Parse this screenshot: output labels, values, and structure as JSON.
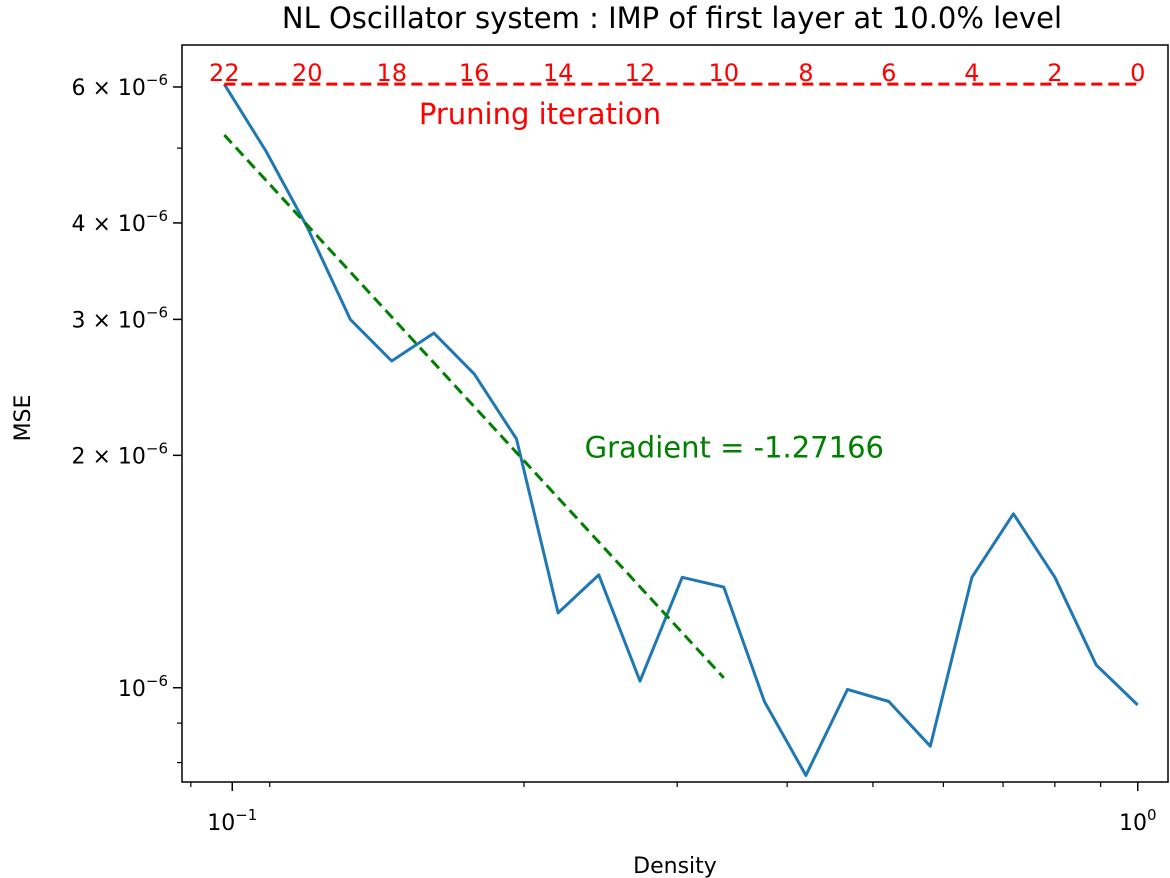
{
  "chart_data": {
    "type": "line",
    "title": "NL Oscillator system : IMP of first layer at 10.0% level",
    "xlabel": "Density",
    "ylabel": "MSE",
    "xscale": "log",
    "yscale": "log",
    "xlim": [
      0.088,
      1.08
    ],
    "ylim": [
      7.55e-07,
      6.8e-06
    ],
    "x_ticks": [
      {
        "value": 0.1,
        "base": "10",
        "exp": "−1"
      },
      {
        "value": 1.0,
        "base": "10",
        "exp": "0"
      }
    ],
    "y_ticks": [
      {
        "value": 1e-06,
        "mant": "",
        "base": "10",
        "exp": "−6"
      },
      {
        "value": 2e-06,
        "mant": "2 × ",
        "base": "10",
        "exp": "−6"
      },
      {
        "value": 3e-06,
        "mant": "3 × ",
        "base": "10",
        "exp": "−6"
      },
      {
        "value": 4e-06,
        "mant": "4 × ",
        "base": "10",
        "exp": "−6"
      },
      {
        "value": 6e-06,
        "mant": "6 × ",
        "base": "10",
        "exp": "−6"
      }
    ],
    "grid": false,
    "colors": {
      "mse": "#1f77b4",
      "fit": "#008000",
      "pruning": "#ff0000",
      "axes": "#000000"
    },
    "series": [
      {
        "key": "mse",
        "x": [
          0.098,
          0.109,
          0.121,
          0.135,
          0.15,
          0.167,
          0.185,
          0.206,
          0.229,
          0.254,
          0.282,
          0.314,
          0.349,
          0.387,
          0.43,
          0.478,
          0.531,
          0.59,
          0.656,
          0.729,
          0.81,
          0.9,
          1.0
        ],
        "y": [
          6.05e-06,
          4.95e-06,
          3.95e-06,
          3e-06,
          2.65e-06,
          2.88e-06,
          2.55e-06,
          2.1e-06,
          1.25e-06,
          1.4e-06,
          1.02e-06,
          1.39e-06,
          1.35e-06,
          9.6e-07,
          7.7e-07,
          9.95e-07,
          9.6e-07,
          8.4e-07,
          1.39e-06,
          1.68e-06,
          1.39e-06,
          1.07e-06,
          9.5e-07
        ]
      },
      {
        "key": "fit",
        "x": [
          0.098,
          0.349
        ],
        "y": [
          5.2e-06,
          1.03e-06
        ]
      }
    ],
    "pruning_iterations": {
      "label": "Pruning iteration",
      "y": 6.05e-06,
      "x_range": [
        0.098,
        1.0
      ],
      "ticks": [
        {
          "label": "22",
          "x": 0.098
        },
        {
          "label": "20",
          "x": 0.121
        },
        {
          "label": "18",
          "x": 0.15
        },
        {
          "label": "16",
          "x": 0.185
        },
        {
          "label": "14",
          "x": 0.229
        },
        {
          "label": "12",
          "x": 0.282
        },
        {
          "label": "10",
          "x": 0.349
        },
        {
          "label": "8",
          "x": 0.43
        },
        {
          "label": "6",
          "x": 0.531
        },
        {
          "label": "4",
          "x": 0.656
        },
        {
          "label": "2",
          "x": 0.81
        },
        {
          "label": "0",
          "x": 1.0
        }
      ]
    },
    "annotations": [
      {
        "text": "Gradient = -1.27166",
        "x": 0.245,
        "y": 2e-06,
        "color": "#008000"
      }
    ]
  }
}
